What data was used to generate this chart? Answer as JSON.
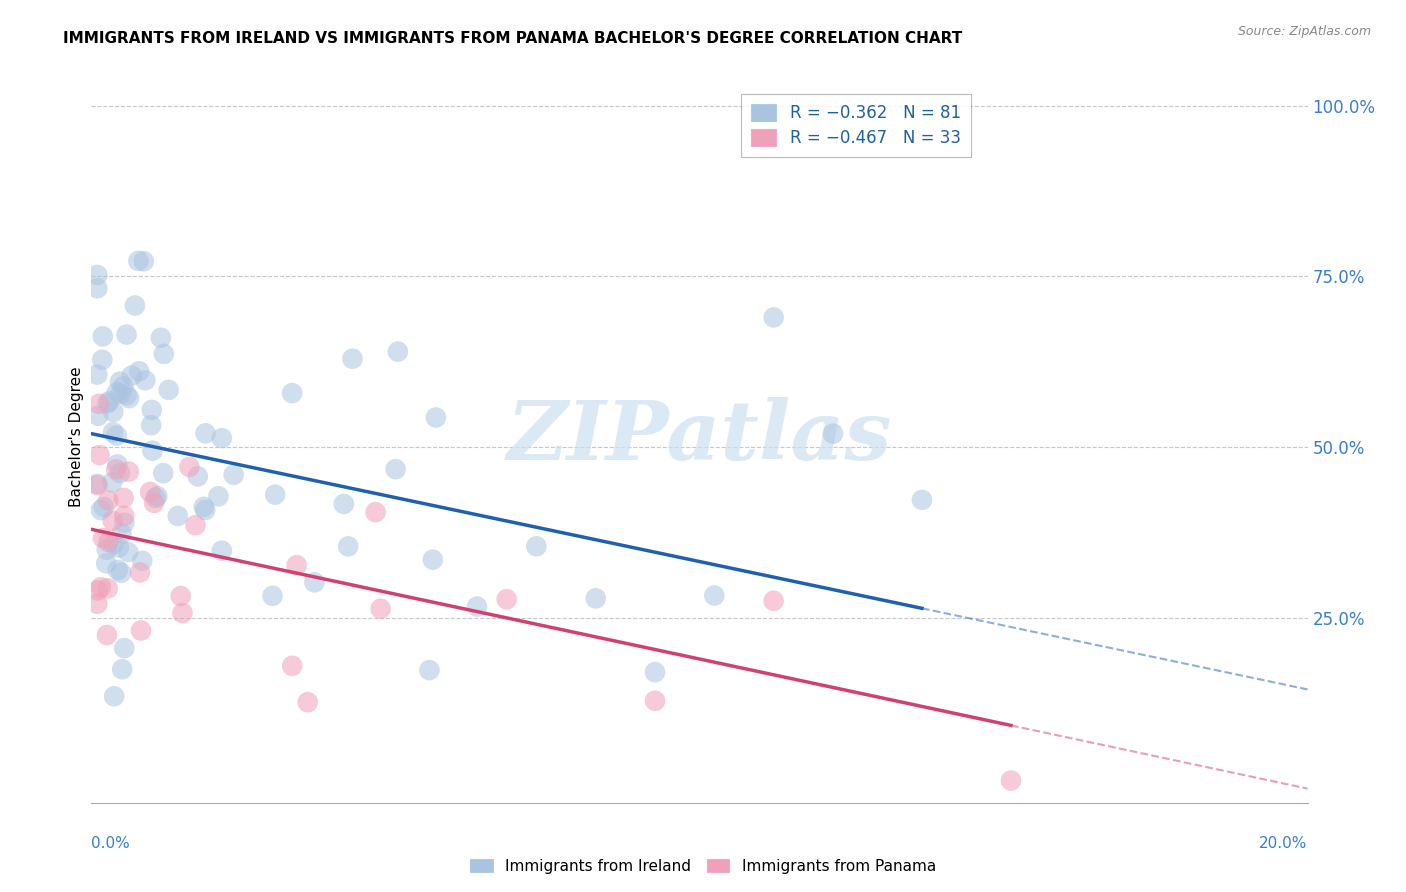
{
  "title": "IMMIGRANTS FROM IRELAND VS IMMIGRANTS FROM PANAMA BACHELOR'S DEGREE CORRELATION CHART",
  "source": "Source: ZipAtlas.com",
  "ylabel": "Bachelor's Degree",
  "y_ticks": [
    0.25,
    0.5,
    0.75,
    1.0
  ],
  "y_tick_labels": [
    "25.0%",
    "50.0%",
    "75.0%",
    "100.0%"
  ],
  "ireland_color": "#aac4e0",
  "ireland_line_color": "#2060b0",
  "panama_color": "#f0a0b8",
  "panama_line_color": "#d04070",
  "ireland_R": -0.362,
  "ireland_N": 81,
  "panama_R": -0.467,
  "panama_N": 33,
  "ireland_line_x0": 0.0,
  "ireland_line_y0": 0.52,
  "ireland_line_x1": 0.2,
  "ireland_line_y1": 0.155,
  "panama_line_x0": 0.0,
  "panama_line_y0": 0.38,
  "panama_line_x1": 0.2,
  "panama_line_y1": 0.01,
  "watermark": "ZIPatlas",
  "bg_color": "#ffffff",
  "grid_color": "#c8c8c8",
  "xlim": [
    0.0,
    0.205
  ],
  "ylim": [
    -0.02,
    1.05
  ],
  "scatter_size": 220,
  "scatter_alpha": 0.55
}
